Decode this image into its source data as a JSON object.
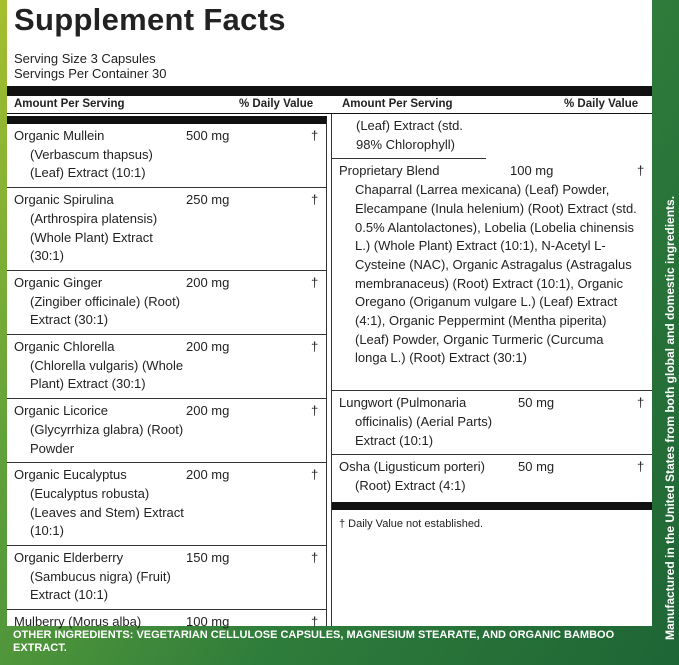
{
  "title": "Supplement Facts",
  "serving_size": "Serving Size 3 Capsules",
  "servings_per_container": "Servings Per Container 30",
  "headers": [
    {
      "amount": "Amount Per Serving",
      "daily_value": "% Daily Value"
    },
    {
      "amount": "Amount Per Serving",
      "daily_value": "% Daily Value"
    }
  ],
  "left_items": [
    {
      "name": "Organic Mullein",
      "amount": "500 mg",
      "daily_value": "†",
      "description": "(Verbascum thapsus) (Leaf) Extract (10:1)"
    },
    {
      "name": "Organic Spirulina",
      "amount": "250 mg",
      "daily_value": "†",
      "description": "(Arthrospira platensis) (Whole Plant) Extract (30:1)"
    },
    {
      "name": "Organic Ginger",
      "amount": "200 mg",
      "daily_value": "†",
      "description": "(Zingiber officinale) (Root) Extract (30:1)"
    },
    {
      "name": "Organic Chlorella",
      "amount": "200 mg",
      "daily_value": "†",
      "description": "(Chlorella vulgaris) (Whole Plant) Extract (30:1)"
    },
    {
      "name": "Organic Licorice",
      "amount": "200 mg",
      "daily_value": "†",
      "description": "(Glycyrrhiza glabra) (Root) Powder"
    },
    {
      "name": "Organic Eucalyptus",
      "amount": "200 mg",
      "daily_value": "†",
      "description": "(Eucalyptus robusta) (Leaves and Stem) Extract (10:1)"
    },
    {
      "name": "Organic Elderberry",
      "amount": "150 mg",
      "daily_value": "†",
      "description": "(Sambucus nigra) (Fruit) Extract (10:1)"
    },
    {
      "name": "Mulberry (Morus alba)",
      "amount": "100 mg",
      "daily_value": "†"
    }
  ],
  "continuation": "(Leaf) Extract (std. 98% Chlorophyll)",
  "right_items": [
    {
      "name": "Proprietary Blend",
      "amount": "100 mg",
      "daily_value": "†",
      "description": "Chaparral (Larrea mexicana) (Leaf) Powder, Elecampane (Inula helenium) (Root) Extract (std. 0.5% Alantolactones), Lobelia (Lobelia chinensis L.) (Whole Plant) Extract (10:1), N-Acetyl L-Cysteine (NAC), Organic Astragalus (Astragalus membranaceus) (Root) Extract (10:1), Organic Oregano (Origanum vulgare L.) (Leaf) Extract (4:1), Organic Peppermint (Mentha piperita) (Leaf) Powder, Organic Turmeric (Curcuma longa L.) (Root) Extract (30:1)"
    },
    {
      "name": "Lungwort (Pulmonaria",
      "amount": "50 mg",
      "daily_value": "†",
      "description": "officinalis) (Aerial Parts) Extract (10:1)"
    },
    {
      "name": "Osha (Ligusticum",
      "amount": "50 mg",
      "daily_value": "†",
      "description": "porteri) (Root) Extract (4:1)"
    }
  ],
  "footnote": "† Daily Value not established.",
  "other_ingredients": "OTHER INGREDIENTS: VEGETARIAN CELLULOSE CAPSULES, MAGNESIUM STEARATE, AND ORGANIC BAMBOO EXTRACT.",
  "side_note": "Manufactured in the United States from both global and domestic ingredients."
}
